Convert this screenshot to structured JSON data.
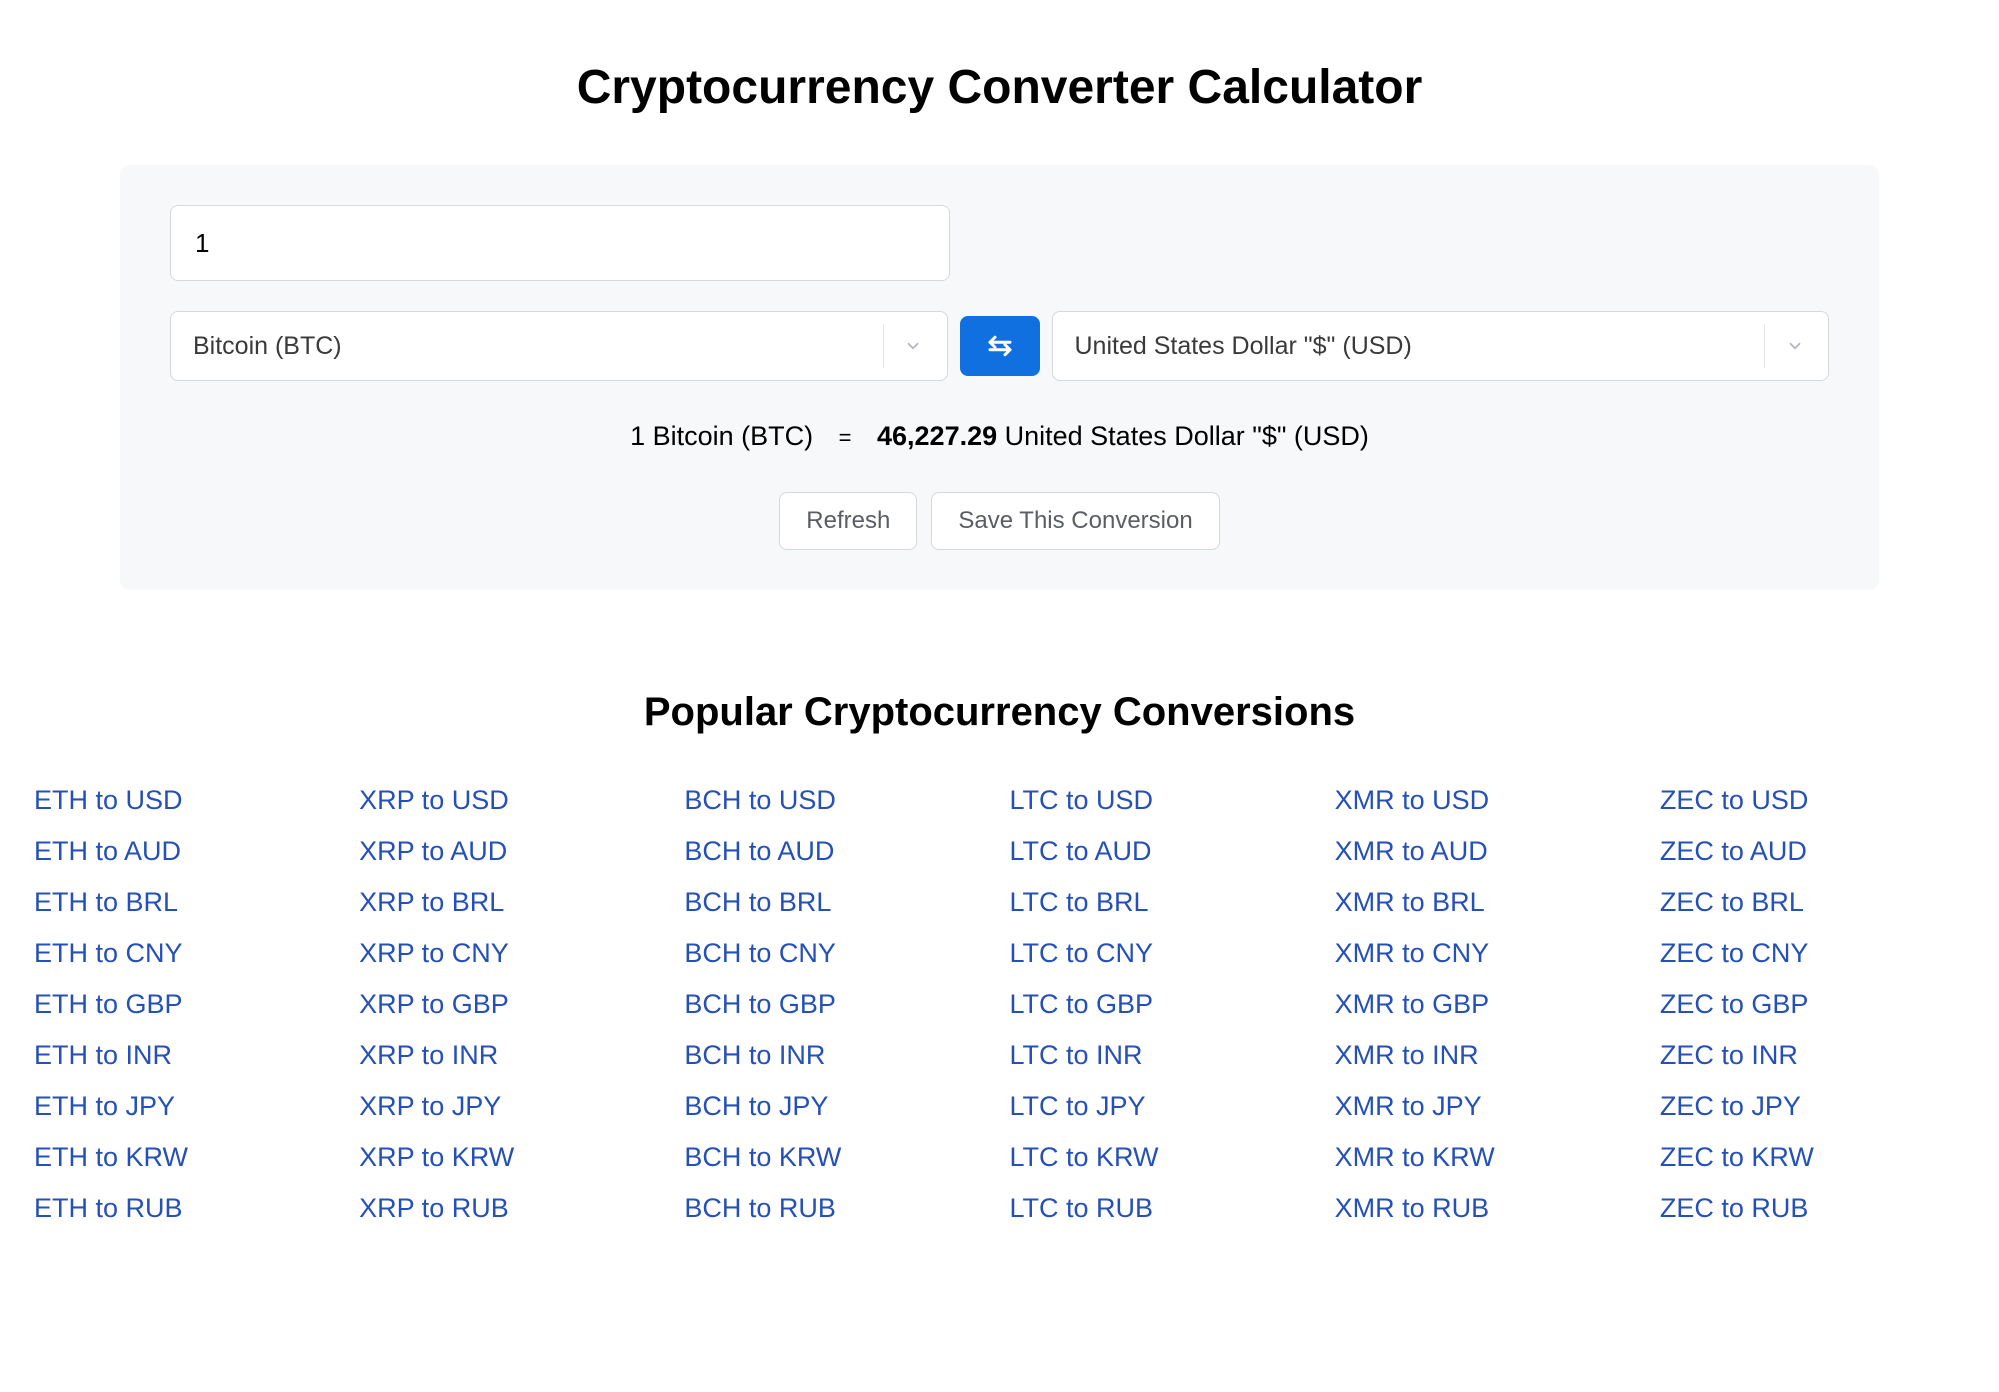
{
  "title": "Cryptocurrency Converter Calculator",
  "converter": {
    "amount_value": "1",
    "from_currency": "Bitcoin (BTC)",
    "to_currency": "United States Dollar \"$\" (USD)",
    "result_left": "1 Bitcoin (BTC)",
    "result_rate": "46,227.29",
    "result_right_unit": " United States Dollar \"$\" (USD)",
    "refresh_label": "Refresh",
    "save_label": "Save This Conversion",
    "colors": {
      "card_bg": "#f7f8f9",
      "border": "#d5d8dc",
      "swap_bg": "#1070e0",
      "link": "#2450b8",
      "ghost_text": "#5a5e64"
    }
  },
  "popular": {
    "title": "Popular Cryptocurrency Conversions",
    "columns": [
      [
        "ETH to USD",
        "ETH to AUD",
        "ETH to BRL",
        "ETH to CNY",
        "ETH to GBP",
        "ETH to INR",
        "ETH to JPY",
        "ETH to KRW",
        "ETH to RUB"
      ],
      [
        "XRP to USD",
        "XRP to AUD",
        "XRP to BRL",
        "XRP to CNY",
        "XRP to GBP",
        "XRP to INR",
        "XRP to JPY",
        "XRP to KRW",
        "XRP to RUB"
      ],
      [
        "BCH to USD",
        "BCH to AUD",
        "BCH to BRL",
        "BCH to CNY",
        "BCH to GBP",
        "BCH to INR",
        "BCH to JPY",
        "BCH to KRW",
        "BCH to RUB"
      ],
      [
        "LTC to USD",
        "LTC to AUD",
        "LTC to BRL",
        "LTC to CNY",
        "LTC to GBP",
        "LTC to INR",
        "LTC to JPY",
        "LTC to KRW",
        "LTC to RUB"
      ],
      [
        "XMR to USD",
        "XMR to AUD",
        "XMR to BRL",
        "XMR to CNY",
        "XMR to GBP",
        "XMR to INR",
        "XMR to JPY",
        "XMR to KRW",
        "XMR to RUB"
      ],
      [
        "ZEC to USD",
        "ZEC to AUD",
        "ZEC to BRL",
        "ZEC to CNY",
        "ZEC to GBP",
        "ZEC to INR",
        "ZEC to JPY",
        "ZEC to KRW",
        "ZEC to RUB"
      ]
    ]
  }
}
